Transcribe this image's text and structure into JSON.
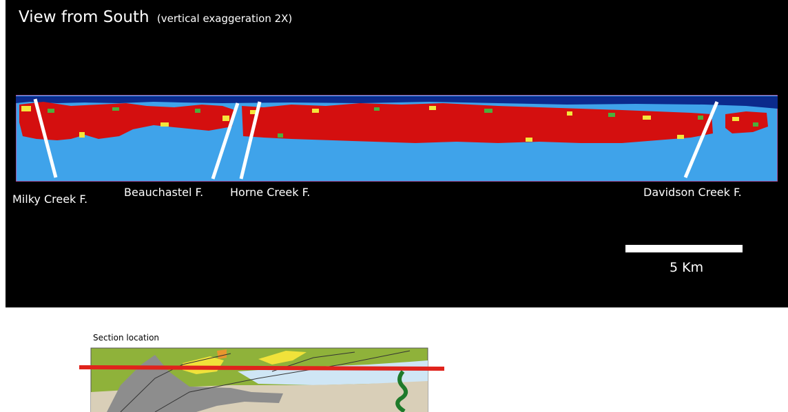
{
  "header": {
    "title": "View from South",
    "subtitle": "(vertical exaggeration 2X)"
  },
  "faults": [
    {
      "label": "Milky Creek F."
    },
    {
      "label": "Beauchastel F."
    },
    {
      "label": "Horne Creek F."
    },
    {
      "label": "Davidson Creek F."
    }
  ],
  "scale": {
    "label": "5 Km"
  },
  "inset": {
    "label": "Section location"
  },
  "colors": {
    "background": "#000000",
    "deep_blue": "#0b2a8c",
    "light_blue": "#3fa3ea",
    "red": "#d40f0f",
    "yellow": "#f3e63b",
    "green": "#4caf3c",
    "fault_line": "#ffffff",
    "map_olive": "#8fb23a",
    "map_gray": "#8d8d8d",
    "map_tan": "#d9cfb8",
    "map_water": "#cfe6f5",
    "map_section_line": "#e0231c",
    "map_dark_green": "#1e7a2a"
  }
}
